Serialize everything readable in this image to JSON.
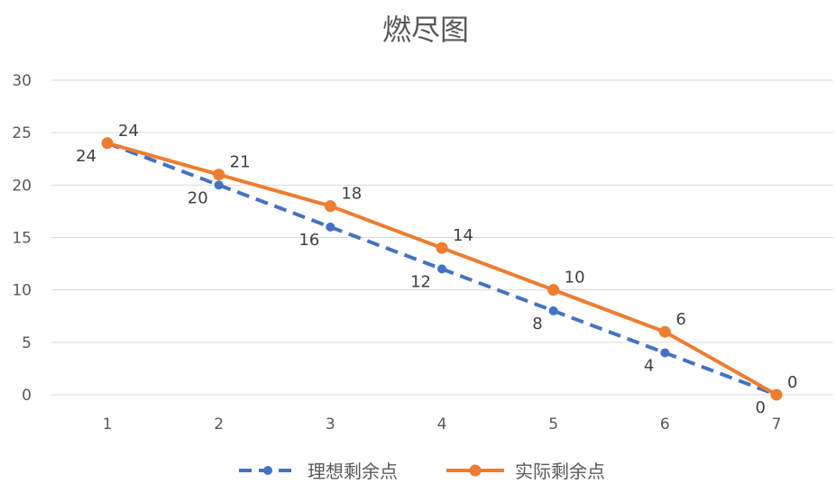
{
  "chart_data": {
    "type": "line",
    "title": "燃尽图",
    "xlabel": "",
    "ylabel": "",
    "x": [
      1,
      2,
      3,
      4,
      5,
      6,
      7
    ],
    "ylim": [
      0,
      30
    ],
    "yticks": [
      0,
      5,
      10,
      15,
      20,
      25,
      30
    ],
    "grid": true,
    "legend_position": "bottom",
    "series": [
      {
        "name": "理想剩余点",
        "values": [
          24,
          20,
          16,
          12,
          8,
          4,
          0
        ],
        "color": "#4472C4",
        "line_style": "dashed",
        "marker": "circle",
        "data_labels": true
      },
      {
        "name": "实际剩余点",
        "values": [
          24,
          21,
          18,
          14,
          10,
          6,
          0
        ],
        "color": "#ED7D31",
        "line_style": "solid",
        "marker": "circle",
        "data_labels": true
      }
    ]
  }
}
